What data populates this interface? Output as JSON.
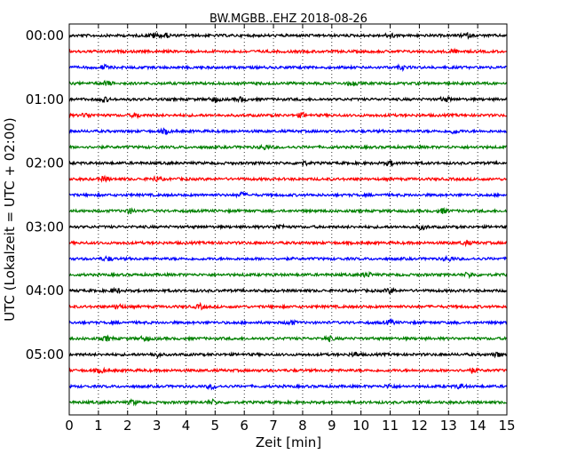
{
  "chart_data": {
    "type": "line",
    "title": "BW.MGBB..EHZ 2018-08-26",
    "xlabel": "Zeit  [min]",
    "ylabel": "UTC (Lokalzeit = UTC + 02:00)",
    "xlim": [
      0,
      15
    ],
    "x_ticks": [
      "0",
      "1",
      "2",
      "3",
      "4",
      "5",
      "6",
      "7",
      "8",
      "9",
      "10",
      "11",
      "12",
      "13",
      "14",
      "15"
    ],
    "y_tick_labels": [
      "00:00",
      "01:00",
      "02:00",
      "03:00",
      "04:00",
      "05:00"
    ],
    "rows_per_hour": 4,
    "row_count": 24,
    "row_colors": [
      "#000000",
      "#ff0000",
      "#0000ff",
      "#008000"
    ],
    "grid": "vertical dotted at each minute",
    "legend": "none",
    "bursts": [
      {
        "row": 0,
        "minutes": [
          2.9,
          3.3,
          11.0,
          13.6
        ]
      },
      {
        "row": 1,
        "minutes": [
          13.1
        ]
      },
      {
        "row": 2,
        "minutes": [
          1.2,
          11.4
        ]
      },
      {
        "row": 3,
        "minutes": [
          1.3,
          9.7
        ]
      },
      {
        "row": 4,
        "minutes": [
          1.2,
          5.0,
          5.9,
          12.9
        ]
      },
      {
        "row": 5,
        "minutes": [
          0.6,
          2.3,
          8.0
        ]
      },
      {
        "row": 6,
        "minutes": [
          3.3,
          13.2
        ]
      },
      {
        "row": 7,
        "minutes": [
          6.7
        ]
      },
      {
        "row": 8,
        "minutes": [
          8.0,
          11.0
        ]
      },
      {
        "row": 9,
        "minutes": [
          1.2,
          3.0
        ]
      },
      {
        "row": 10,
        "minutes": [
          5.9
        ]
      },
      {
        "row": 11,
        "minutes": [
          2.1,
          12.8
        ]
      },
      {
        "row": 12,
        "minutes": [
          7.2,
          12.1
        ]
      },
      {
        "row": 13,
        "minutes": [
          13.6
        ]
      },
      {
        "row": 14,
        "minutes": [
          1.3,
          13.0
        ]
      },
      {
        "row": 15,
        "minutes": [
          10.2,
          13.7
        ]
      },
      {
        "row": 16,
        "minutes": [
          1.6,
          11.0
        ]
      },
      {
        "row": 17,
        "minutes": [
          1.7,
          4.5
        ]
      },
      {
        "row": 18,
        "minutes": [
          7.6,
          11.0
        ]
      },
      {
        "row": 19,
        "minutes": [
          1.3,
          2.6,
          8.9
        ]
      },
      {
        "row": 20,
        "minutes": [
          3.0,
          9.8,
          14.7
        ]
      },
      {
        "row": 21,
        "minutes": [
          1.1,
          13.8
        ]
      },
      {
        "row": 22,
        "minutes": [
          4.9,
          11.0,
          13.4
        ]
      },
      {
        "row": 23,
        "minutes": [
          2.2,
          4.9
        ]
      }
    ]
  }
}
